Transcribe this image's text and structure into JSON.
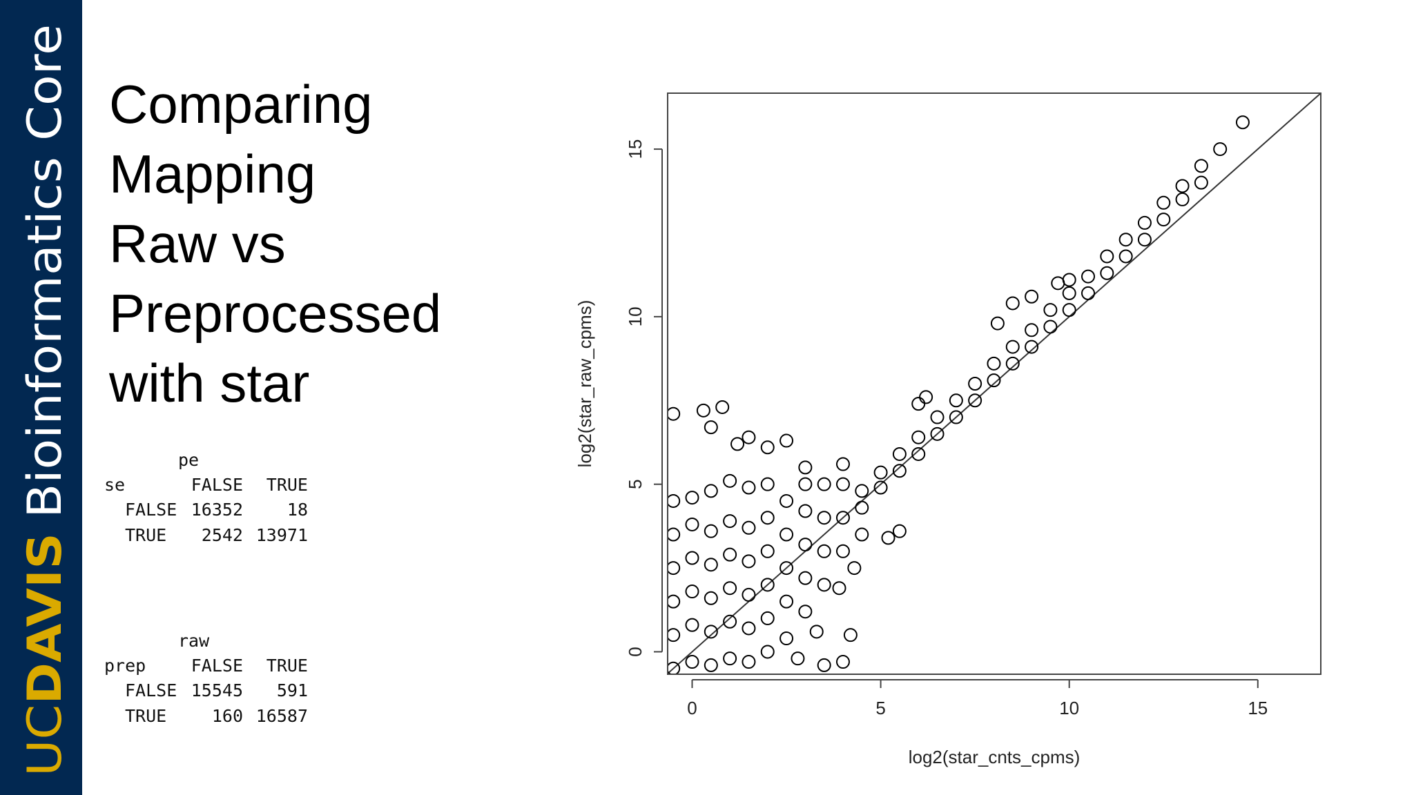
{
  "sidebar": {
    "brand_uc": "UC",
    "brand_davis": "DAVIS",
    "subtitle": "Bioinformatics Core"
  },
  "slide": {
    "title_lines": [
      "Comparing",
      "Mapping",
      "Raw vs",
      "Preprocessed",
      "with star"
    ]
  },
  "tables": [
    {
      "column_var": "pe",
      "row_var": "se",
      "columns": [
        "FALSE",
        "TRUE"
      ],
      "rows": [
        {
          "label": "FALSE",
          "values": [
            16352,
            18
          ]
        },
        {
          "label": "TRUE",
          "values": [
            2542,
            13971
          ]
        }
      ]
    },
    {
      "column_var": "raw",
      "row_var": "prep",
      "columns": [
        "FALSE",
        "TRUE"
      ],
      "rows": [
        {
          "label": "FALSE",
          "values": [
            15545,
            591
          ]
        },
        {
          "label": "TRUE",
          "values": [
            160,
            16587
          ]
        }
      ]
    }
  ],
  "chart_data": {
    "type": "scatter",
    "x_label": "log2(star_cnts_cpms)",
    "y_label": "log2(star_raw_cpms)",
    "color": "#000000",
    "identity_line": true,
    "xlim": [
      -0.65,
      16.67
    ],
    "ylim": [
      -0.67,
      16.67
    ],
    "xticks": [
      0,
      5,
      10,
      15
    ],
    "yticks": [
      0,
      5,
      10,
      15
    ],
    "x": [
      -0.5,
      -0.5,
      -0.5,
      -0.5,
      -0.5,
      -0.5,
      0,
      0,
      0,
      0,
      0,
      0,
      0.5,
      0.5,
      0.5,
      0.5,
      0.5,
      0.5,
      1,
      1,
      1,
      1,
      1,
      1,
      1.5,
      1.5,
      1.5,
      1.5,
      1.5,
      1.5,
      2,
      2,
      2,
      2,
      2,
      2,
      2.5,
      2.5,
      2.5,
      2.5,
      2.5,
      3,
      3,
      3,
      3,
      3,
      3.5,
      3.5,
      3.5,
      3.5,
      4,
      4,
      4,
      4,
      4.5,
      5,
      5.5,
      6,
      6.5,
      7,
      7.5,
      8,
      8.5,
      9,
      9.5,
      10,
      10.5,
      11,
      11.5,
      12,
      12.5,
      13,
      13.5,
      14,
      14.6,
      4.5,
      5,
      5.5,
      6,
      6.5,
      7,
      7.5,
      8,
      8.5,
      9,
      9.5,
      10,
      10.5,
      11,
      11.5,
      12,
      12.5,
      13,
      13.5,
      -0.5,
      0.3,
      0.8,
      1.2,
      1.5,
      2.5,
      2,
      0.5,
      4.5,
      5.2,
      5.5,
      4.3,
      3.3,
      2.8,
      3.5,
      4,
      8.1,
      8.5,
      9,
      9.7,
      10,
      6,
      6.2,
      3,
      4.2,
      3.9
    ],
    "values": [
      -0.5,
      0.5,
      1.5,
      2.5,
      3.5,
      4.5,
      -0.3,
      0.8,
      1.8,
      2.8,
      3.8,
      4.6,
      -0.4,
      0.6,
      1.6,
      2.6,
      3.6,
      4.8,
      -0.2,
      0.9,
      1.9,
      2.9,
      3.9,
      5.1,
      -0.3,
      0.7,
      1.7,
      2.7,
      3.7,
      4.9,
      0,
      1,
      2,
      3,
      4,
      5,
      0.4,
      1.5,
      2.5,
      3.5,
      4.5,
      1.2,
      2.2,
      3.2,
      4.2,
      5,
      2,
      3,
      4,
      5,
      3,
      4,
      5,
      5.6,
      4.8,
      5.35,
      5.9,
      6.4,
      7,
      7.5,
      8,
      8.6,
      9.1,
      9.6,
      10.2,
      10.7,
      11.2,
      11.8,
      12.3,
      12.8,
      13.4,
      13.9,
      14.5,
      15,
      15.8,
      4.3,
      4.9,
      5.4,
      5.9,
      6.5,
      7,
      7.5,
      8.1,
      8.6,
      9.1,
      9.7,
      10.2,
      10.7,
      11.3,
      11.8,
      12.3,
      12.9,
      13.5,
      14,
      7.1,
      7.2,
      7.3,
      6.2,
      6.4,
      6.3,
      6.1,
      6.7,
      3.5,
      3.4,
      3.6,
      2.5,
      0.6,
      -0.2,
      -0.4,
      -0.3,
      9.8,
      10.4,
      10.6,
      11,
      11.1,
      7.4,
      7.6,
      5.5,
      0.5,
      1.9
    ]
  }
}
